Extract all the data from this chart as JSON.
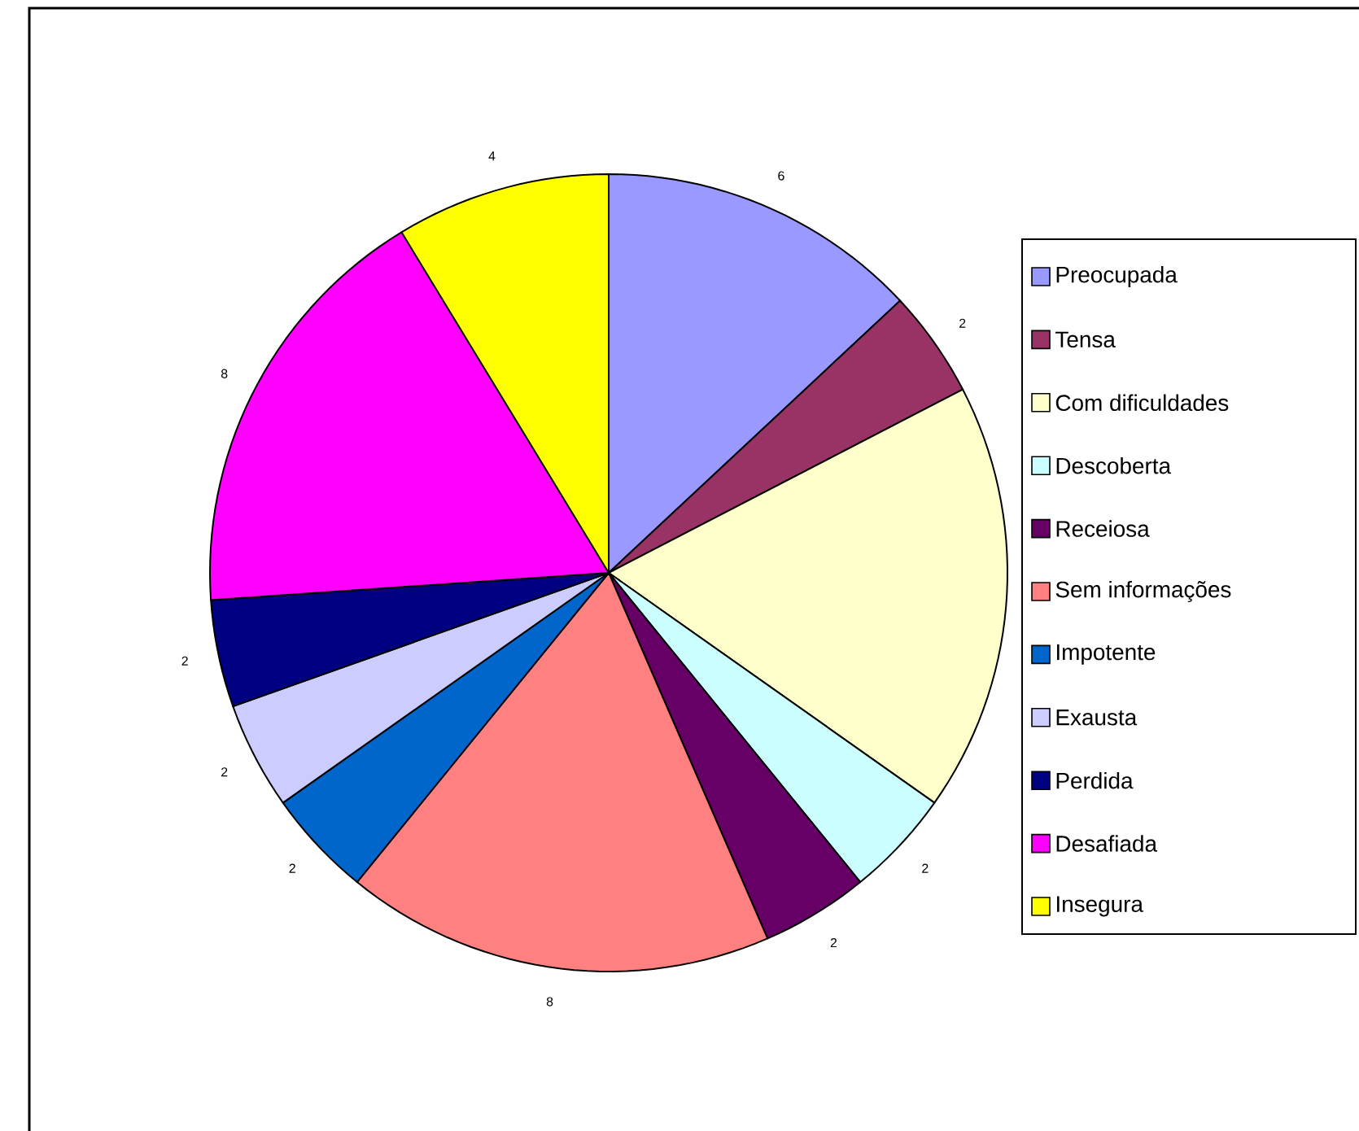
{
  "chart_data": {
    "type": "pie",
    "categories": [
      "Preocupada",
      "Tensa",
      "Com dificuldades",
      "Descoberta",
      "Receiosa",
      "Sem informações",
      "Impotente",
      "Exausta",
      "Perdida",
      "Desafiada",
      "Insegura"
    ],
    "values": [
      6,
      2,
      8,
      2,
      2,
      8,
      2,
      2,
      2,
      8,
      4
    ],
    "value_labels": [
      "6",
      "2",
      null,
      "2",
      "2",
      "8",
      "2",
      "2",
      "2",
      "8",
      "4"
    ],
    "colors": [
      "#9999ff",
      "#993366",
      "#ffffcc",
      "#ccffff",
      "#660066",
      "#ff8080",
      "#0066cc",
      "#ccccff",
      "#000080",
      "#ff00ff",
      "#ffff00"
    ],
    "legend": "right"
  }
}
